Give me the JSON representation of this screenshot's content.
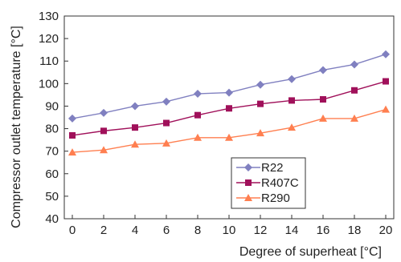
{
  "chart_data": {
    "type": "line",
    "xlabel": "Degree of superheat [°C]",
    "ylabel": "Compressor outlet temperature [°C]",
    "xlim": [
      0,
      20
    ],
    "ylim": [
      40,
      130
    ],
    "x_ticks": [
      0,
      2,
      4,
      6,
      8,
      10,
      12,
      14,
      16,
      18,
      20
    ],
    "y_ticks": [
      40,
      50,
      60,
      70,
      80,
      90,
      100,
      110,
      120,
      130
    ],
    "grid": false,
    "legend_position": "lower-center",
    "x": [
      0,
      2,
      4,
      6,
      8,
      10,
      12,
      14,
      16,
      18,
      20
    ],
    "series": [
      {
        "name": "R22",
        "color": "#8080c0",
        "marker": "diamond",
        "values": [
          84.5,
          87.0,
          90.0,
          92.0,
          95.5,
          96.0,
          99.5,
          102.0,
          106.0,
          108.5,
          113.0
        ]
      },
      {
        "name": "R407C",
        "color": "#a0105a",
        "marker": "square",
        "values": [
          77.0,
          79.0,
          80.5,
          82.5,
          86.0,
          89.0,
          91.0,
          92.5,
          93.0,
          97.0,
          101.0
        ]
      },
      {
        "name": "R290",
        "color": "#ff7f50",
        "marker": "triangle",
        "values": [
          69.5,
          70.5,
          73.0,
          73.5,
          76.0,
          76.0,
          78.0,
          80.5,
          84.5,
          84.5,
          88.5
        ]
      }
    ]
  }
}
